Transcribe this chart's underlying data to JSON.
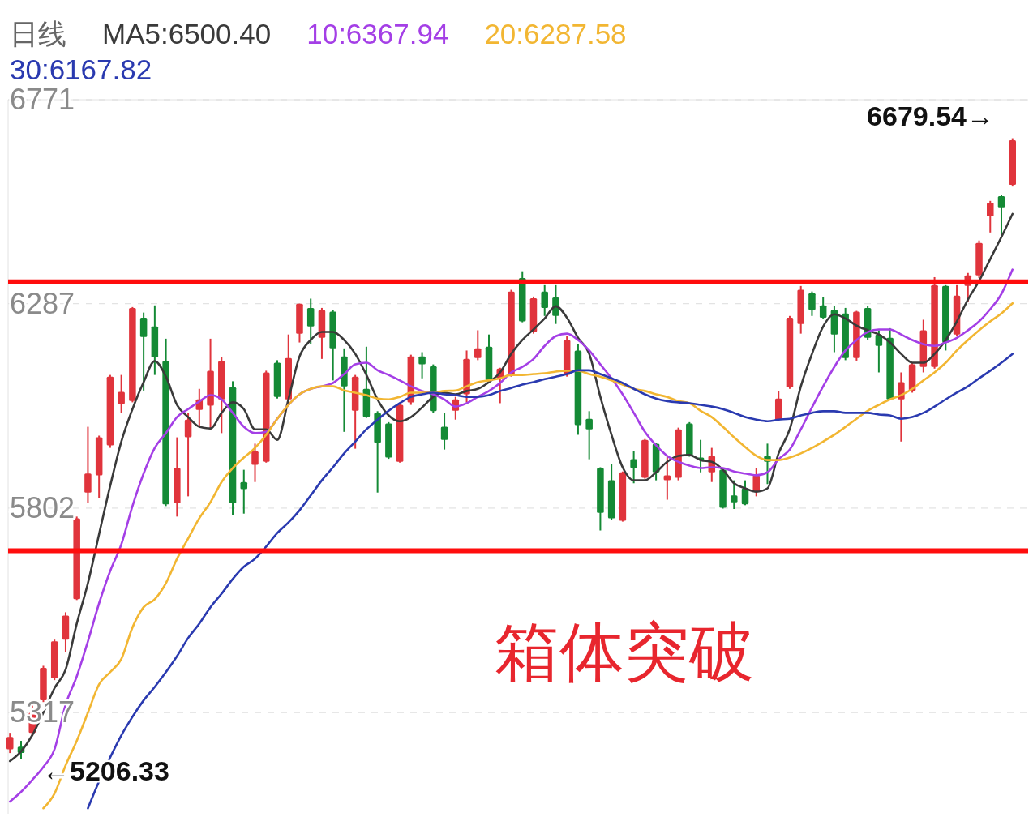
{
  "chart_data": {
    "type": "candlestick",
    "title": "日线",
    "legend": "top left",
    "grid": "y",
    "tick_labels": "y",
    "ylim": [
      5077,
      6771
    ],
    "yticks": [
      6771,
      6287,
      5802,
      5317
    ],
    "categories": [
      null,
      null,
      null,
      null,
      null,
      null,
      null,
      null,
      null,
      null,
      null,
      null,
      null,
      null,
      null,
      null,
      null,
      null,
      null,
      null,
      null,
      null,
      null,
      null,
      null,
      null,
      null,
      null,
      null,
      null,
      null,
      null,
      null,
      null,
      null,
      null,
      null,
      null,
      null,
      null,
      null,
      null,
      null,
      null,
      null,
      null,
      null,
      null,
      null,
      null,
      null,
      null,
      null,
      null,
      null,
      null,
      null,
      null,
      null,
      null,
      null,
      null,
      null,
      null,
      null,
      null,
      null,
      null,
      null,
      null,
      null,
      null,
      null,
      null,
      null,
      null,
      null,
      null,
      null,
      null,
      null,
      null,
      null,
      null,
      null,
      null,
      null,
      null,
      null,
      null,
      null
    ],
    "ohlc": [
      [
        5230,
        5269,
        5221,
        5259
      ],
      [
        5236,
        5250,
        5206.33,
        5221
      ],
      [
        5269,
        5336,
        5263,
        5317
      ],
      [
        5346,
        5428,
        5342,
        5423
      ],
      [
        5398,
        5490,
        5394,
        5486
      ],
      [
        5490,
        5555,
        5461,
        5547
      ],
      [
        5586,
        5782,
        5584,
        5778
      ],
      [
        5839,
        5995,
        5814,
        5884
      ],
      [
        5880,
        5974,
        5826,
        5970
      ],
      [
        5951,
        6118,
        5945,
        6114
      ],
      [
        6049,
        6118,
        6028,
        6078
      ],
      [
        6056,
        6279,
        6053,
        6277
      ],
      [
        6254,
        6266,
        6081,
        6208
      ],
      [
        6233,
        6283,
        6118,
        6160
      ],
      [
        6151,
        6204,
        5807,
        5811
      ],
      [
        5814,
        5970,
        5782,
        5897
      ],
      [
        5970,
        6028,
        5830,
        6012
      ],
      [
        6035,
        6085,
        5995,
        6060
      ],
      [
        6045,
        6204,
        5987,
        6128
      ],
      [
        6060,
        6160,
        5980,
        6151
      ],
      [
        6089,
        6103,
        5786,
        5814
      ],
      [
        5864,
        5893,
        5789,
        5847
      ],
      [
        5905,
        5955,
        5864,
        5937
      ],
      [
        5912,
        6128,
        5910,
        6124
      ],
      [
        6147,
        6153,
        6062,
        6066
      ],
      [
        6060,
        6214,
        6047,
        6158
      ],
      [
        6216,
        6287,
        6195,
        6287
      ],
      [
        6277,
        6299,
        6191,
        6233
      ],
      [
        6206,
        6277,
        6156,
        6272
      ],
      [
        6268,
        6272,
        6105,
        6181
      ],
      [
        6162,
        6181,
        5983,
        6091
      ],
      [
        6033,
        6118,
        5943,
        6114
      ],
      [
        6085,
        6185,
        6016,
        6018
      ],
      [
        6028,
        6032,
        5839,
        5957
      ],
      [
        6003,
        6006,
        5919,
        5922
      ],
      [
        5912,
        6049,
        5910,
        6047
      ],
      [
        6053,
        6166,
        6047,
        6162
      ],
      [
        6162,
        6172,
        6110,
        6143
      ],
      [
        6139,
        6143,
        6028,
        6032
      ],
      [
        5995,
        6028,
        5941,
        5964
      ],
      [
        6033,
        6066,
        6012,
        6060
      ],
      [
        6072,
        6176,
        6053,
        6156
      ],
      [
        6158,
        6224,
        6153,
        6181
      ],
      [
        6185,
        6214,
        6102,
        6105
      ],
      [
        6110,
        6135,
        6051,
        6133
      ],
      [
        6118,
        6320,
        6114,
        6316
      ],
      [
        6348,
        6364,
        6243,
        6245
      ],
      [
        6220,
        6304,
        6216,
        6300
      ],
      [
        6316,
        6331,
        6258,
        6277
      ],
      [
        6302,
        6331,
        6239,
        6258
      ],
      [
        6118,
        6210,
        6114,
        6201
      ],
      [
        6176,
        6191,
        5976,
        5999
      ],
      [
        6014,
        6032,
        5918,
        5989
      ],
      [
        5897,
        5899,
        5749,
        5791
      ],
      [
        5868,
        5907,
        5774,
        5778
      ],
      [
        5772,
        5889,
        5770,
        5887
      ],
      [
        5918,
        5937,
        5861,
        5897
      ],
      [
        5874,
        5966,
        5872,
        5964
      ],
      [
        5955,
        5957,
        5868,
        5887
      ],
      [
        5868,
        5926,
        5822,
        5880
      ],
      [
        5874,
        5993,
        5868,
        5989
      ],
      [
        6003,
        6006,
        5924,
        5926
      ],
      [
        5922,
        5964,
        5887,
        5916
      ],
      [
        5887,
        5945,
        5864,
        5926
      ],
      [
        5893,
        5897,
        5801,
        5803
      ],
      [
        5832,
        5868,
        5800,
        5816
      ],
      [
        5849,
        5868,
        5809,
        5811
      ],
      [
        5841,
        5897,
        5830,
        5880
      ],
      [
        5926,
        5955,
        5859,
        5912
      ],
      [
        6012,
        6080,
        6008,
        6062
      ],
      [
        6089,
        6258,
        6085,
        6254
      ],
      [
        6239,
        6329,
        6216,
        6320
      ],
      [
        6312,
        6316,
        6258,
        6272
      ],
      [
        6283,
        6302,
        6252,
        6254
      ],
      [
        6272,
        6281,
        6172,
        6214
      ],
      [
        6264,
        6277,
        6153,
        6158
      ],
      [
        6158,
        6270,
        6152,
        6268
      ],
      [
        6277,
        6281,
        6201,
        6206
      ],
      [
        6214,
        6224,
        6124,
        6187
      ],
      [
        6206,
        6229,
        6058,
        6060
      ],
      [
        6060,
        6124,
        5960,
        6101
      ],
      [
        6080,
        6147,
        6076,
        6143
      ],
      [
        6137,
        6249,
        6124,
        6224
      ],
      [
        6137,
        6350,
        6133,
        6331
      ],
      [
        6329,
        6331,
        6176,
        6195
      ],
      [
        6214,
        6331,
        6210,
        6306
      ],
      [
        6329,
        6360,
        6291,
        6354
      ],
      [
        6354,
        6437,
        6348,
        6431
      ],
      [
        6494,
        6531,
        6456,
        6527
      ],
      [
        6542,
        6546,
        6446,
        6514
      ],
      [
        6569,
        6679.54,
        6565,
        6675
      ]
    ],
    "series": [
      {
        "type": "line",
        "name": "MA5:6500.40",
        "color": "#3a3a3a",
        "values": [
          5202,
          5225,
          5263,
          5317,
          5375,
          5419,
          5528,
          5624,
          5740,
          5855,
          5960,
          6037,
          6101,
          6151,
          6114,
          6047,
          6018,
          5995,
          5991,
          6028,
          6053,
          6037,
          5989,
          5989,
          5964,
          6060,
          6162,
          6201,
          6220,
          6220,
          6201,
          6168,
          6118,
          6060,
          6022,
          6008,
          6018,
          6041,
          6066,
          6076,
          6072,
          6080,
          6085,
          6101,
          6124,
          6168,
          6201,
          6226,
          6252,
          6281,
          6254,
          6206,
          6168,
          6066,
          5976,
          5899,
          5868,
          5868,
          5887,
          5912,
          5926,
          5928,
          5916,
          5912,
          5893,
          5861,
          5849,
          5841,
          5849,
          5932,
          5989,
          6091,
          6168,
          6233,
          6262,
          6252,
          6235,
          6224,
          6214,
          6195,
          6168,
          6147,
          6147,
          6168,
          6201,
          6245,
          6297,
          6341,
          6393,
          6445,
          6500
        ]
      },
      {
        "type": "line",
        "name": "10:6367.94",
        "color": "#a43fe6",
        "values": [
          5106,
          5129,
          5157,
          5188,
          5230,
          5336,
          5403,
          5486,
          5576,
          5653,
          5716,
          5807,
          5884,
          5945,
          5980,
          6018,
          6037,
          6055,
          6070,
          6060,
          6028,
          5995,
          5980,
          5983,
          6014,
          6047,
          6072,
          6085,
          6091,
          6099,
          6120,
          6143,
          6147,
          6129,
          6118,
          6105,
          6091,
          6080,
          6072,
          6060,
          6043,
          6051,
          6066,
          6080,
          6099,
          6124,
          6137,
          6156,
          6187,
          6210,
          6216,
          6201,
          6176,
          6143,
          6110,
          6072,
          6028,
          5983,
          5951,
          5926,
          5912,
          5903,
          5897,
          5899,
          5897,
          5889,
          5884,
          5880,
          5887,
          5918,
          5941,
          5989,
          6041,
          6091,
          6137,
          6176,
          6201,
          6220,
          6226,
          6226,
          6214,
          6201,
          6191,
          6187,
          6195,
          6206,
          6224,
          6245,
          6274,
          6310,
          6368
        ]
      },
      {
        "type": "line",
        "name": "20:6287.58",
        "color": "#f2b632",
        "values": [
          null,
          null,
          null,
          5090,
          5125,
          5192,
          5250,
          5317,
          5384,
          5413,
          5444,
          5519,
          5567,
          5586,
          5624,
          5682,
          5730,
          5778,
          5816,
          5864,
          5897,
          5922,
          5945,
          5976,
          6014,
          6047,
          6072,
          6085,
          6091,
          6091,
          6081,
          6076,
          6070,
          6062,
          6060,
          6066,
          6076,
          6076,
          6076,
          6080,
          6081,
          6091,
          6101,
          6105,
          6110,
          6118,
          6118,
          6120,
          6122,
          6126,
          6128,
          6128,
          6120,
          6114,
          6105,
          6095,
          6085,
          6080,
          6072,
          6066,
          6056,
          6051,
          6033,
          6018,
          5995,
          5970,
          5947,
          5926,
          5916,
          5916,
          5922,
          5932,
          5945,
          5960,
          5976,
          5995,
          6014,
          6033,
          6047,
          6060,
          6070,
          6085,
          6105,
          6124,
          6147,
          6176,
          6201,
          6224,
          6245,
          6264,
          6288
        ]
      },
      {
        "type": "line",
        "name": "30:6167.82",
        "color": "#2a3ab0",
        "values": [
          null,
          null,
          null,
          null,
          null,
          null,
          null,
          5090,
          5154,
          5211,
          5263,
          5307,
          5346,
          5378,
          5413,
          5451,
          5494,
          5528,
          5567,
          5599,
          5634,
          5663,
          5682,
          5711,
          5743,
          5768,
          5797,
          5832,
          5868,
          5899,
          5932,
          5960,
          5989,
          6012,
          6033,
          6051,
          6066,
          6072,
          6076,
          6072,
          6070,
          6066,
          6066,
          6070,
          6080,
          6087,
          6095,
          6101,
          6108,
          6114,
          6120,
          6129,
          6129,
          6120,
          6110,
          6099,
          6085,
          6072,
          6062,
          6056,
          6053,
          6051,
          6047,
          6043,
          6037,
          6028,
          6018,
          6012,
          6008,
          6012,
          6014,
          6022,
          6028,
          6032,
          6032,
          6028,
          6028,
          6028,
          6024,
          6022,
          6014,
          6018,
          6028,
          6043,
          6060,
          6076,
          6091,
          6110,
          6128,
          6147,
          6168
        ]
      }
    ],
    "ref_lines": [
      {
        "axis": "y",
        "value": 6339,
        "color": "#ff0d0d"
      },
      {
        "axis": "y",
        "value": 5701,
        "color": "#ff0d0d"
      }
    ],
    "annotations": [
      "6679.54→",
      "←5206.33",
      "箱体突破"
    ]
  }
}
